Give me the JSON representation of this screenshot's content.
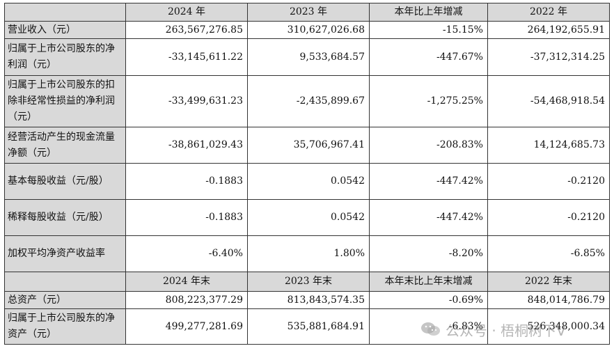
{
  "header1": {
    "col1": "2024 年",
    "col2": "2023 年",
    "col3": "本年比上年增减",
    "col4": "2022 年"
  },
  "rows1": [
    {
      "label": "营业收入（元）",
      "v2024": "263,567,276.85",
      "v2023": "310,627,026.68",
      "change": "-15.15%",
      "v2022": "264,192,655.91"
    },
    {
      "label": "归属于上市公司股东的净利润（元）",
      "v2024": "-33,145,611.22",
      "v2023": "9,533,684.57",
      "change": "-447.67%",
      "v2022": "-37,312,314.25"
    },
    {
      "label": "归属于上市公司股东的扣除非经常性损益的净利润（元）",
      "v2024": "-33,499,631.23",
      "v2023": "-2,435,899.67",
      "change": "-1,275.25%",
      "v2022": "-54,468,918.54"
    },
    {
      "label": "经营活动产生的现金流量净额（元）",
      "v2024": "-38,861,029.43",
      "v2023": "35,706,967.41",
      "change": "-208.83%",
      "v2022": "14,124,685.73"
    },
    {
      "label": "基本每股收益（元/股）",
      "v2024": "-0.1883",
      "v2023": "0.0542",
      "change": "-447.42%",
      "v2022": "-0.2120"
    },
    {
      "label": "稀释每股收益（元/股）",
      "v2024": "-0.1883",
      "v2023": "0.0542",
      "change": "-447.42%",
      "v2022": "-0.2120"
    },
    {
      "label": "加权平均净资产收益率",
      "v2024": "-6.40%",
      "v2023": "1.80%",
      "change": "-8.20%",
      "v2022": "-6.85%"
    }
  ],
  "header2": {
    "col1": "2024 年末",
    "col2": "2023 年末",
    "col3": "本年末比上年末增减",
    "col4": "2022 年末"
  },
  "rows2": [
    {
      "label": "总资产（元）",
      "v2024": "808,223,377.29",
      "v2023": "813,843,574.35",
      "change": "-0.69%",
      "v2022": "848,014,786.79"
    },
    {
      "label": "归属于上市公司股东的净资产（元）",
      "v2024": "499,277,281.69",
      "v2023": "535,881,684.91",
      "change": "-6.83%",
      "v2022": "526,348,000.34"
    }
  ],
  "watermark": {
    "text": "公众号 · 梧桐树下V",
    "icon": "wechat-icon"
  }
}
